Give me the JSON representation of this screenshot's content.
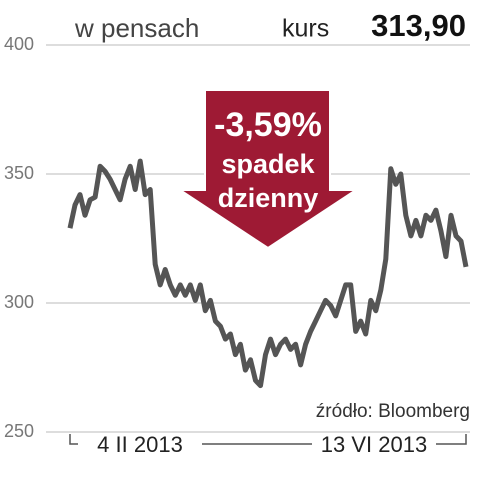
{
  "chart_data": {
    "type": "line",
    "subtitle": "w pensach",
    "price_label": "kurs",
    "price_value": "313,90",
    "annotation": [
      "-3,59%",
      "spadek",
      "dzienny"
    ],
    "source": "źródło: Bloomberg",
    "categories": [
      "4 II 2013",
      null,
      null,
      null,
      null,
      null,
      null,
      null,
      null,
      null,
      null,
      null,
      null,
      null,
      null,
      null,
      null,
      null,
      null,
      null,
      null,
      null,
      null,
      null,
      null,
      null,
      null,
      null,
      null,
      null,
      null,
      null,
      null,
      null,
      null,
      null,
      null,
      null,
      null,
      null,
      null,
      null,
      null,
      null,
      null,
      null,
      null,
      null,
      null,
      null,
      null,
      null,
      null,
      null,
      null,
      null,
      null,
      null,
      null,
      null,
      null,
      null,
      null,
      null,
      null,
      null,
      null,
      null,
      null,
      null,
      null,
      null,
      null,
      null,
      null,
      null,
      null,
      null,
      null,
      "13 VI 2013"
    ],
    "values": [
      329,
      338,
      342,
      334,
      340,
      341,
      353,
      351,
      348,
      344,
      340,
      348,
      353,
      344,
      355,
      342,
      344,
      315,
      307,
      313,
      307,
      303,
      307,
      303,
      307,
      301,
      307,
      297,
      301,
      293,
      291,
      286,
      288,
      280,
      284,
      274,
      278,
      270,
      268,
      280,
      286,
      280,
      284,
      286,
      282,
      284,
      276,
      284,
      289,
      293,
      297,
      301,
      299,
      295,
      301,
      307,
      307,
      289,
      293,
      288,
      301,
      297,
      305,
      317,
      352,
      346,
      350,
      334,
      326,
      332,
      326,
      334,
      332,
      336,
      328,
      318,
      334,
      326,
      324,
      314
    ],
    "color": "#555555",
    "ylim": [
      250,
      400
    ],
    "yticks": [
      250,
      300,
      350,
      400
    ],
    "grid": true
  }
}
